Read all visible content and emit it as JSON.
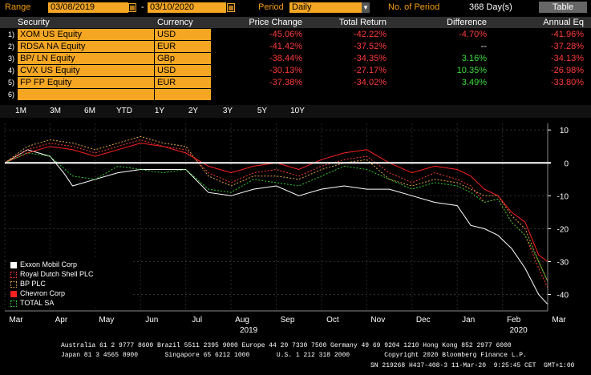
{
  "toolbar": {
    "range_label": "Range",
    "start_date": "03/08/2019",
    "date_separator": "-",
    "end_date": "03/10/2020",
    "period_label": "Period",
    "period_value": "Daily",
    "num_period_label": "No. of Period",
    "num_period_value": "368 Day(s)",
    "table_button": "Table"
  },
  "table": {
    "headers": [
      "Security",
      "Currency",
      "Price Change",
      "Total Return",
      "Difference",
      "Annual Eq"
    ],
    "rows": [
      {
        "idx": "1)",
        "security": "XOM US Equity",
        "currency": "USD",
        "price_change": "-45.06%",
        "total_return": "-42.22%",
        "difference": "-4.70%",
        "annual_eq": "-41.96%",
        "diff_color": "red"
      },
      {
        "idx": "2)",
        "security": "RDSA NA Equity",
        "currency": "EUR",
        "price_change": "-41.42%",
        "total_return": "-37.52%",
        "difference": "--",
        "annual_eq": "-37.28%",
        "diff_color": "white"
      },
      {
        "idx": "3)",
        "security": "BP/ LN Equity",
        "currency": "GBp",
        "price_change": "-38.44%",
        "total_return": "-34.35%",
        "difference": "3.16%",
        "annual_eq": "-34.13%",
        "diff_color": "green"
      },
      {
        "idx": "4)",
        "security": "CVX US Equity",
        "currency": "USD",
        "price_change": "-30.13%",
        "total_return": "-27.17%",
        "difference": "10.35%",
        "annual_eq": "-26.98%",
        "diff_color": "green"
      },
      {
        "idx": "5)",
        "security": "FP FP Equity",
        "currency": "EUR",
        "price_change": "-37.38%",
        "total_return": "-34.02%",
        "difference": "3.49%",
        "annual_eq": "-33.80%",
        "diff_color": "green"
      },
      {
        "idx": "6)",
        "security": "",
        "currency": "",
        "price_change": "",
        "total_return": "",
        "difference": "",
        "annual_eq": "",
        "diff_color": "white"
      }
    ]
  },
  "range_buttons": [
    "1M",
    "3M",
    "6M",
    "YTD",
    "1Y",
    "2Y",
    "3Y",
    "5Y",
    "10Y"
  ],
  "chart_data": {
    "type": "line",
    "x_ticks": [
      "Mar",
      "Apr",
      "May",
      "Jun",
      "Jul",
      "Aug",
      "Sep",
      "Oct",
      "Nov",
      "Dec",
      "Jan",
      "Feb",
      "Mar"
    ],
    "year_labels": [
      "2019",
      "2020"
    ],
    "y_ticks": [
      10,
      0,
      -10,
      -20,
      -30,
      -40
    ],
    "ylim": [
      -45,
      12
    ],
    "series": [
      {
        "name": "Exxon Mobil Corp",
        "color": "#ffffff",
        "style": "solid",
        "x": [
          0,
          0.5,
          1,
          1.3,
          1.5,
          2,
          2.5,
          3,
          3.5,
          4,
          4.5,
          5,
          5.5,
          6,
          6.5,
          7,
          7.5,
          8,
          8.5,
          9,
          9.5,
          10,
          10.3,
          10.6,
          10.9,
          11.2,
          11.5,
          11.8,
          12
        ],
        "values": [
          0,
          4,
          2,
          -3,
          -7,
          -5,
          -3,
          -2,
          -2,
          -2,
          -9,
          -10,
          -8,
          -7,
          -10,
          -8,
          -7,
          -8,
          -8,
          -10,
          -12,
          -13,
          -19,
          -20,
          -22,
          -26,
          -32,
          -40,
          -43
        ]
      },
      {
        "name": "Royal Dutch Shell PLC",
        "color": "#ff3b3b",
        "style": "dotted",
        "x": [
          0,
          0.5,
          1,
          1.5,
          2,
          2.5,
          3,
          3.5,
          4,
          4.5,
          5,
          5.5,
          6,
          6.5,
          7,
          7.5,
          8,
          8.5,
          9,
          9.5,
          10,
          10.3,
          10.6,
          10.9,
          11.2,
          11.5,
          11.8,
          12
        ],
        "values": [
          0,
          4,
          6,
          5,
          3,
          5,
          7,
          5,
          4,
          -3,
          -6,
          -3,
          -2,
          -4,
          -1,
          1,
          2,
          -3,
          -6,
          -3,
          -5,
          -7,
          -12,
          -11,
          -18,
          -22,
          -32,
          -38
        ]
      },
      {
        "name": "BP PLC",
        "color": "#e0a84a",
        "style": "dotted",
        "x": [
          0,
          0.5,
          1,
          1.5,
          2,
          2.5,
          3,
          3.5,
          4,
          4.5,
          5,
          5.5,
          6,
          6.5,
          7,
          7.5,
          8,
          8.5,
          9,
          9.5,
          10,
          10.3,
          10.6,
          10.9,
          11.2,
          11.5,
          11.8,
          12
        ],
        "values": [
          0,
          5,
          7,
          6,
          4,
          6,
          8,
          6,
          5,
          -4,
          -7,
          -4,
          -4,
          -5,
          -2,
          0,
          1,
          -5,
          -7,
          -5,
          -6,
          -8,
          -10,
          -10,
          -16,
          -20,
          -30,
          -36
        ]
      },
      {
        "name": "Chevron Corp",
        "color": "#ff2020",
        "style": "solid",
        "x": [
          0,
          0.5,
          1,
          1.5,
          2,
          2.5,
          3,
          3.5,
          4,
          4.5,
          5,
          5.5,
          6,
          6.5,
          7,
          7.5,
          8,
          8.5,
          9,
          9.5,
          10,
          10.3,
          10.6,
          10.9,
          11.2,
          11.5,
          11.8,
          12
        ],
        "values": [
          0,
          3,
          5,
          4,
          2,
          4,
          6,
          5,
          3,
          -1,
          -3,
          -1,
          0,
          -2,
          1,
          3,
          4,
          0,
          -3,
          -1,
          -2,
          -4,
          -8,
          -10,
          -15,
          -18,
          -28,
          -30
        ]
      },
      {
        "name": "TOTAL SA",
        "color": "#2fcc2f",
        "style": "dotted",
        "x": [
          0,
          0.5,
          1,
          1.5,
          2,
          2.5,
          3,
          3.5,
          4,
          4.5,
          5,
          5.5,
          6,
          6.5,
          7,
          7.5,
          8,
          8.5,
          9,
          9.5,
          10,
          10.3,
          10.6,
          10.9,
          11.2,
          11.5,
          11.8,
          12
        ],
        "values": [
          0,
          3,
          2,
          -4,
          -5,
          -1,
          -2,
          -3,
          -2,
          -8,
          -9,
          -5,
          -6,
          -7,
          -4,
          -1,
          -2,
          -5,
          -8,
          -6,
          -7,
          -9,
          -12,
          -11,
          -18,
          -22,
          -30,
          -36
        ]
      }
    ]
  },
  "footer": {
    "line1": "Australia 61 2 9777 8600 Brazil 5511 2395 9000 Europe 44 20 7330 7500 Germany 49 69 9204 1210 Hong Kong 852 2977 6000",
    "line2": "Japan 81 3 4565 8900       Singapore 65 6212 1000       U.S. 1 212 318 2000         Copyright 2020 Bloomberg Finance L.P.",
    "line3": "SN 219268 H437-408-3 11-Mar-20  9:25:45 CET  GMT+1:00"
  }
}
